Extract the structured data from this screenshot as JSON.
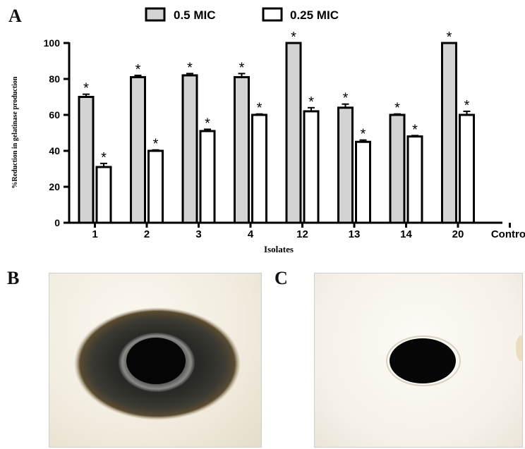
{
  "panels": {
    "a": "A",
    "b": "B",
    "c": "C"
  },
  "chart_data": {
    "type": "bar",
    "title": "",
    "xlabel": "Isolates",
    "ylabel": "%Reduction in gelatinase production",
    "ylim": [
      0,
      100
    ],
    "yticks": [
      "0",
      "20",
      "40",
      "60",
      "80",
      "100"
    ],
    "categories": [
      "1",
      "2",
      "3",
      "4",
      "12",
      "13",
      "14",
      "20",
      "Control"
    ],
    "series": [
      {
        "name": "0.5 MIC",
        "color": "#d3d3d3",
        "values": [
          70,
          81,
          82,
          81,
          100,
          64,
          60,
          100,
          0
        ],
        "errors": [
          1.5,
          1,
          1,
          2,
          0,
          2,
          0.5,
          0,
          0
        ]
      },
      {
        "name": "0.25 MIC",
        "color": "#ffffff",
        "values": [
          31,
          40,
          51,
          60,
          62,
          45,
          48,
          60,
          0
        ],
        "errors": [
          2,
          0.5,
          1,
          0.5,
          2,
          1,
          0.5,
          2,
          0
        ]
      }
    ],
    "significance_mark": "*",
    "significant": [
      true,
      true,
      true,
      true,
      true,
      true,
      true,
      true,
      false
    ],
    "legend": "top"
  }
}
